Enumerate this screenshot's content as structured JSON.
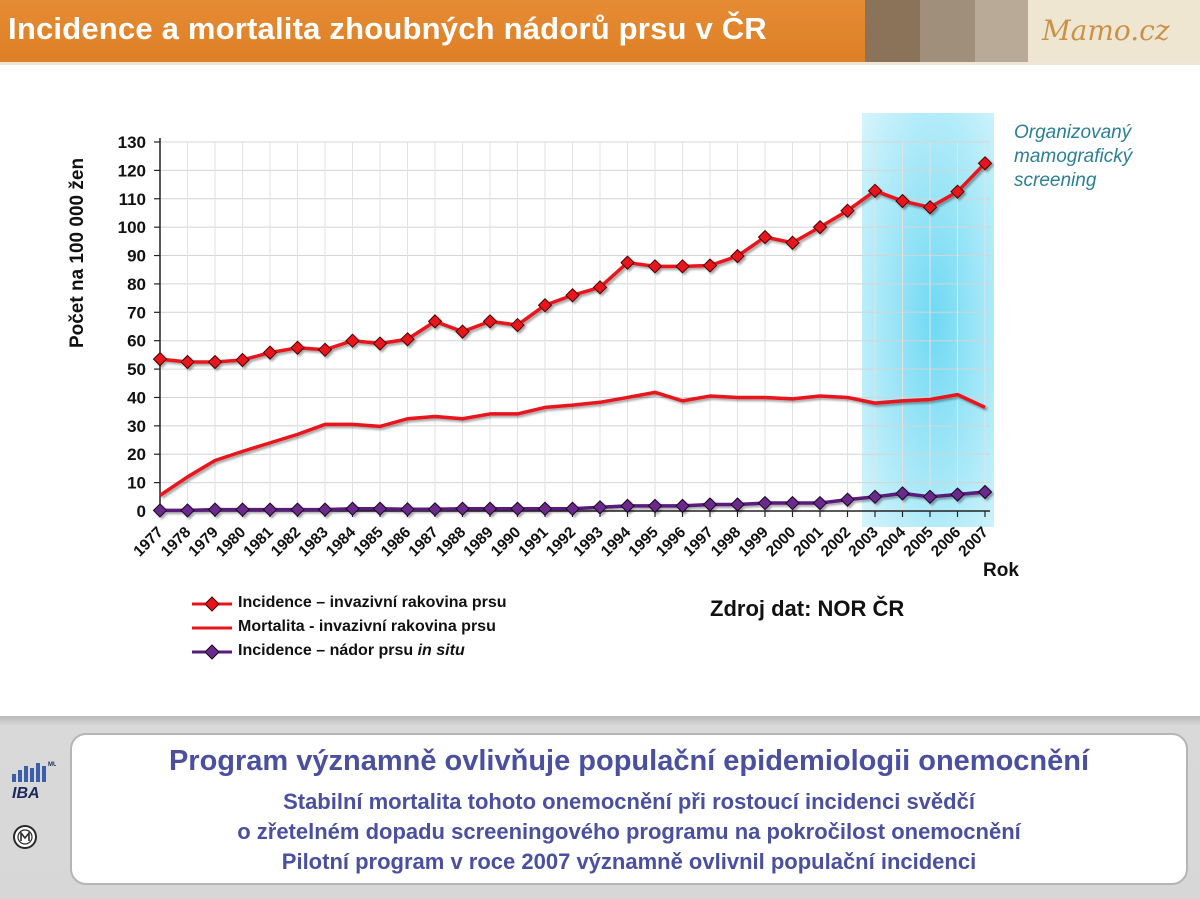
{
  "header": {
    "title": "Incidence a mortalita zhoubných nádorů prsu v ČR",
    "logo": "Mamo.cz",
    "swatches": [
      "#8a7358",
      "#a0907b",
      "#b8aa97",
      "#cfc4b3"
    ]
  },
  "colors": {
    "series_red": "#e8141c",
    "series_purple": "#5a1a7a",
    "highlight": "#8fe3f6"
  },
  "chart_data": {
    "type": "line",
    "ylabel": "Počet  na 100 000 žen",
    "xlabel": "Rok",
    "ylim": [
      0,
      130
    ],
    "yticks": [
      0,
      10,
      20,
      30,
      40,
      50,
      60,
      70,
      80,
      90,
      100,
      110,
      120,
      130
    ],
    "grid": true,
    "x": [
      "1977",
      "1978",
      "1979",
      "1980",
      "1981",
      "1982",
      "1983",
      "1984",
      "1985",
      "1986",
      "1987",
      "1988",
      "1989",
      "1990",
      "1991",
      "1992",
      "1993",
      "1994",
      "1995",
      "1996",
      "1997",
      "1998",
      "1999",
      "2000",
      "2001",
      "2002",
      "2003",
      "2004",
      "2005",
      "2006",
      "2007"
    ],
    "highlight_range": [
      "2003",
      "2007"
    ],
    "highlight_label": "Organizovaný mamografický screening",
    "source": "Zdroj dat: NOR ČR",
    "series": [
      {
        "name": "Incidence – invazivní rakovina prsu",
        "marker": "diamond",
        "color": "#e8141c",
        "values": [
          53.5,
          52.5,
          52.5,
          53.2,
          55.8,
          57.5,
          56.8,
          60.0,
          59.0,
          60.5,
          66.8,
          63.2,
          66.8,
          65.5,
          72.5,
          76.0,
          78.8,
          87.5,
          86.2,
          86.2,
          86.5,
          89.8,
          96.5,
          94.5,
          100.0,
          105.8,
          112.8,
          109.2,
          107.0,
          112.5,
          122.5
        ]
      },
      {
        "name": "Mortalita - invazivní rakovina prsu",
        "marker": "none",
        "color": "#e8141c",
        "values": [
          5.5,
          12.0,
          17.8,
          21.0,
          24.0,
          27.0,
          30.5,
          30.5,
          29.8,
          32.5,
          33.3,
          32.5,
          34.2,
          34.2,
          36.5,
          37.3,
          38.3,
          40.0,
          41.8,
          38.8,
          40.5,
          40.0,
          40.0,
          39.5,
          40.5,
          40.0,
          38.0,
          38.8,
          39.3,
          41.0,
          36.5
        ]
      },
      {
        "name": "Incidence – nádor prsu in situ",
        "marker": "diamond",
        "color": "#5a1a7a",
        "values": [
          0.2,
          0.2,
          0.5,
          0.5,
          0.5,
          0.5,
          0.5,
          0.8,
          0.8,
          0.6,
          0.6,
          0.8,
          0.8,
          0.8,
          0.8,
          0.8,
          1.3,
          1.8,
          1.8,
          1.8,
          2.3,
          2.3,
          2.8,
          2.8,
          2.8,
          4.0,
          5.0,
          6.2,
          5.0,
          5.8,
          6.7
        ]
      }
    ]
  },
  "legend": {
    "items": [
      {
        "label": "Incidence – invazivní rakovina prsu"
      },
      {
        "label": "Mortalita - invazivní rakovina prsu"
      },
      {
        "label_main": "Incidence – nádor prsu ",
        "label_italic": "in situ"
      }
    ]
  },
  "footer": {
    "main": "Program významně ovlivňuje populační epidemiologii onemocnění",
    "lines": [
      "Stabilní mortalita tohoto onemocnění při rostoucí incidenci svědčí",
      "o zřetelném dopadu screeningového programu na pokročilost onemocnění",
      "Pilotní program v roce 2007 významně ovlivnil populační incidenci"
    ],
    "iba_logo": "IBA",
    "iba_superscript": "MU"
  }
}
